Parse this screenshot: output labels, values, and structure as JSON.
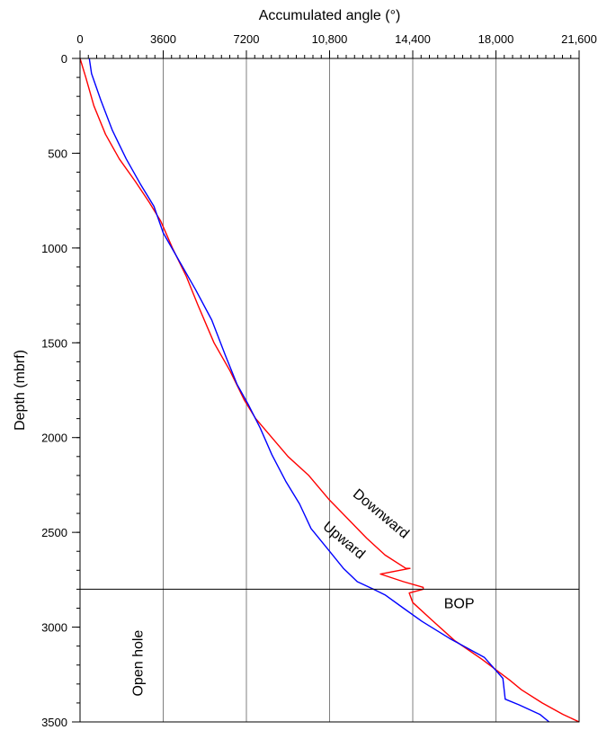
{
  "chart_data": {
    "type": "line",
    "xlabel": "Accumulated angle (°)",
    "ylabel": "Depth (mbrf)",
    "xlim": [
      0,
      21600
    ],
    "ylim": [
      0,
      3500
    ],
    "y_inverted": true,
    "x_axis_position": "top",
    "grid": "vertical",
    "x_ticks": [
      0,
      3600,
      7200,
      10800,
      14400,
      18000,
      21600
    ],
    "x_tick_labels": [
      "0",
      "3600",
      "7200",
      "10,800",
      "14,400",
      "18,000",
      "21,600"
    ],
    "y_ticks": [
      0,
      500,
      1000,
      1500,
      2000,
      2500,
      3000,
      3500
    ],
    "y_tick_labels": [
      "0",
      "500",
      "1000",
      "1500",
      "2000",
      "2500",
      "3000",
      "3500"
    ],
    "horizontal_line": 2800,
    "series": [
      {
        "name": "Downward",
        "color": "#ff0000",
        "x": [
          0,
          250,
          600,
          1100,
          1700,
          2400,
          3000,
          3500,
          4000,
          4600,
          5100,
          5800,
          6500,
          7100,
          7600,
          8300,
          9000,
          9900,
          10800,
          11600,
          12400,
          13200,
          14100,
          14280,
          13000,
          14000,
          14850,
          14850,
          14250,
          14400,
          15200,
          16200,
          17400,
          18600,
          19100,
          20000,
          20900,
          21600
        ],
        "y": [
          0,
          100,
          250,
          400,
          530,
          650,
          760,
          860,
          1000,
          1150,
          1300,
          1500,
          1650,
          1800,
          1900,
          2000,
          2100,
          2200,
          2330,
          2430,
          2530,
          2620,
          2690,
          2690,
          2720,
          2760,
          2790,
          2800,
          2820,
          2870,
          2960,
          3070,
          3170,
          3280,
          3330,
          3400,
          3460,
          3500
        ]
      },
      {
        "name": "Upward",
        "color": "#0000ff",
        "x": [
          400,
          500,
          900,
          1400,
          2000,
          2600,
          3200,
          3600,
          4300,
          5000,
          5700,
          6300,
          6800,
          7300,
          7800,
          8300,
          8900,
          9500,
          10000,
          10800,
          11400,
          12000,
          12700,
          13200,
          14000,
          14800,
          16000,
          17500,
          18300,
          18400,
          19000,
          19900,
          20300
        ],
        "y": [
          0,
          80,
          220,
          380,
          530,
          660,
          780,
          920,
          1070,
          1220,
          1380,
          1570,
          1720,
          1830,
          1950,
          2090,
          2230,
          2350,
          2480,
          2600,
          2690,
          2760,
          2800,
          2830,
          2900,
          2970,
          3060,
          3160,
          3270,
          3380,
          3410,
          3460,
          3500
        ]
      }
    ],
    "annotations": [
      {
        "text": "Downward"
      },
      {
        "text": "Upward"
      },
      {
        "text": "BOP"
      },
      {
        "text": "Open hole"
      }
    ]
  }
}
